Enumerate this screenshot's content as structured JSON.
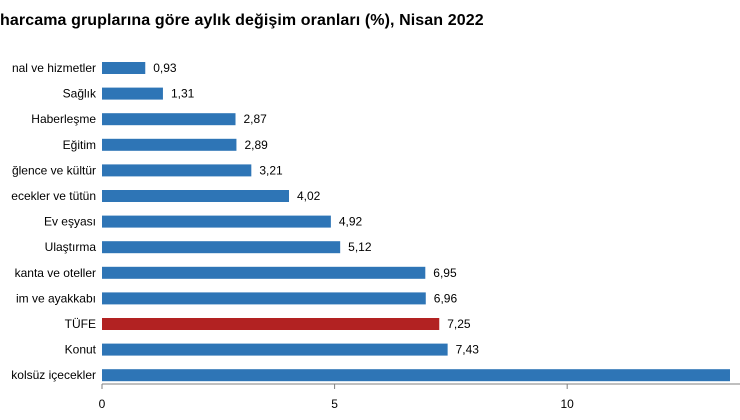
{
  "chart_data": {
    "type": "bar",
    "orientation": "horizontal",
    "title": "harcama gruplarına göre aylık değişim oranları (%), Nisan 2022",
    "categories": [
      "nal ve hizmetler",
      "Sağlık",
      "Haberleşme",
      "Eğitim",
      "ğlence ve kültür",
      "ecekler ve tütün",
      "Ev eşyası",
      "Ulaştırma",
      "kanta ve oteller",
      "im ve ayakkabı",
      "TÜFE",
      "Konut",
      "kolsüz içecekler"
    ],
    "values": [
      0.93,
      1.31,
      2.87,
      2.89,
      3.21,
      4.02,
      4.92,
      5.12,
      6.95,
      6.96,
      7.25,
      7.43,
      13.5
    ],
    "value_labels": [
      "0,93",
      "1,31",
      "2,87",
      "2,89",
      "3,21",
      "4,02",
      "4,92",
      "5,12",
      "6,95",
      "6,96",
      "7,25",
      "7,43",
      ""
    ],
    "highlight_category": "TÜFE",
    "colors": {
      "bar": "#2e75b6",
      "highlight": "#b22222",
      "axis": "#7f7f7f"
    },
    "xticks": [
      0,
      5,
      10
    ],
    "xtick_labels": [
      "0",
      "5",
      "10"
    ],
    "xlim": [
      0,
      13.5
    ],
    "grid": false,
    "legend": "none"
  }
}
